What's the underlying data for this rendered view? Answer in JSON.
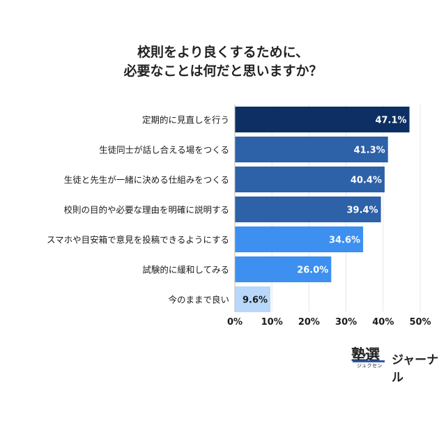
{
  "title_lines": [
    "校則をより良くするために、",
    "必要なことは何だと思いますか？"
  ],
  "chart_data": {
    "type": "bar",
    "orientation": "horizontal",
    "title": "校則をより良くするために、必要なことは何だと思いますか？",
    "categories": [
      "定期的に見直しを行う",
      "生徒同士が話し合える場をつくる",
      "生徒と先生が一緒に決める仕組みをつくる",
      "校則の目的や必要な理由を明確に説明する",
      "スマホや目安箱で意見を投稿できるようにする",
      "試験的に緩和してみる",
      "今のままで良い"
    ],
    "values": [
      47.1,
      41.3,
      40.4,
      39.4,
      34.6,
      26.0,
      9.6
    ],
    "value_labels": [
      "47.1%",
      "41.3%",
      "40.4%",
      "39.4%",
      "34.6%",
      "26.0%",
      "9.6%"
    ],
    "bar_colors": [
      "#0d2f63",
      "#2d61a8",
      "#2d61a8",
      "#2d61a8",
      "#3d8ff0",
      "#3d8ff0",
      "#b8d8fb"
    ],
    "label_colors": [
      "#ffffff",
      "#ffffff",
      "#ffffff",
      "#ffffff",
      "#ffffff",
      "#ffffff",
      "#1a1a1a"
    ],
    "xlim": [
      0,
      50
    ],
    "xticks": [
      0,
      10,
      20,
      30,
      40,
      50
    ],
    "xtick_labels": [
      "0%",
      "10%",
      "20%",
      "30%",
      "40%",
      "50%"
    ],
    "grid": true,
    "grid_color": "#e6e6e6"
  },
  "logo": {
    "kanji": "塾選",
    "kana": "ジュクセン",
    "journal": "ジャーナル"
  }
}
